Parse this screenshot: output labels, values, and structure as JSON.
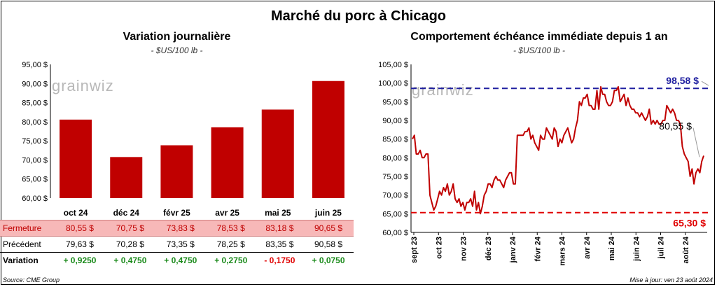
{
  "main_title": "Marché du porc à Chicago",
  "left": {
    "title": "Variation  journalière",
    "subtitle": "- $US/100 lb -"
  },
  "right": {
    "title": "Comportement  échéance  immédiate  depuis  1 an",
    "subtitle": "- $US/100 lb -"
  },
  "watermark": "grainwiz",
  "colors": {
    "bar": "#c00000",
    "line": "#c00000",
    "high_line": "#1f1fa0",
    "low_line": "#e00000"
  },
  "chart_data": [
    {
      "type": "bar",
      "categories": [
        "oct 24",
        "déc 24",
        "févr 25",
        "avr 25",
        "mai 25",
        "juin 25"
      ],
      "values": [
        80.55,
        70.75,
        73.83,
        78.53,
        83.18,
        90.65
      ],
      "ylim": [
        60,
        95
      ],
      "yticks": [
        "60,00 $",
        "65,00 $",
        "70,00 $",
        "75,00 $",
        "80,00 $",
        "85,00 $",
        "90,00 $",
        "95,00 $"
      ],
      "grid": false
    },
    {
      "type": "line",
      "x_labels": [
        "sept 23",
        "oct 23",
        "nov 23",
        "déc 23",
        "janv 24",
        "févr 24",
        "mars 24",
        "avr 24",
        "mai 24",
        "juin 24",
        "juil 24",
        "août 24"
      ],
      "ylim": [
        60,
        105
      ],
      "yticks": [
        "60,00 $",
        "65,00 $",
        "70,00 $",
        "75,00 $",
        "80,00 $",
        "85,00 $",
        "90,00 $",
        "95,00 $",
        "100,00 $",
        "105,00 $"
      ],
      "series": [
        {
          "values": [
            85,
            86,
            81,
            81,
            82,
            80,
            80,
            81,
            81,
            70,
            68,
            66,
            67,
            69,
            71,
            70,
            72,
            71,
            73,
            70,
            71,
            73,
            69,
            68,
            69,
            67,
            68,
            66,
            68,
            68,
            69,
            67,
            71,
            66,
            68,
            65,
            67,
            70,
            71,
            73,
            73,
            72,
            74,
            75,
            74,
            74,
            73,
            72,
            74,
            75,
            76,
            76,
            73,
            73,
            86,
            86,
            86,
            86,
            87,
            87,
            88,
            85,
            86,
            84,
            83,
            82,
            86,
            85,
            85,
            88,
            87,
            86,
            85,
            88,
            87,
            83,
            85,
            84,
            86,
            87,
            88,
            86,
            84,
            85,
            88,
            90,
            95,
            94,
            96,
            96,
            97,
            94,
            94,
            93,
            93,
            98,
            93,
            99,
            97,
            97,
            95,
            94,
            94,
            95,
            98,
            98,
            99,
            95,
            96,
            97,
            94,
            96,
            94,
            93,
            93,
            92,
            92,
            91,
            92,
            91,
            90,
            91,
            93,
            89,
            90,
            89,
            90,
            89,
            89,
            90,
            90,
            94,
            93,
            92,
            93,
            92,
            90,
            90,
            89,
            83,
            81,
            80,
            79,
            75,
            77,
            73,
            76,
            77,
            76,
            79,
            80.55
          ]
        }
      ],
      "annotations": {
        "high": "98,58 $",
        "last": "80,55 $",
        "low": "65,30 $"
      },
      "high_value": 98.58,
      "low_value": 65.3
    }
  ],
  "summary": {
    "rows": [
      {
        "label": "Fermeture",
        "values": [
          "80,55  $",
          "70,75  $",
          "73,83  $",
          "78,53  $",
          "83,18  $",
          "90,65  $"
        ]
      },
      {
        "label": "Précédent",
        "values": [
          "79,63  $",
          "70,28  $",
          "73,35  $",
          "78,25  $",
          "83,35  $",
          "90,58  $"
        ]
      },
      {
        "label": "Variation",
        "values": [
          "+ 0,9250",
          "+ 0,4750",
          "+ 0,4750",
          "+ 0,2750",
          "- 0,1750",
          "+ 0,0750"
        ]
      }
    ]
  },
  "source": "Source: CME Group",
  "updated": "Mise à jour: ven 23 août 2024"
}
